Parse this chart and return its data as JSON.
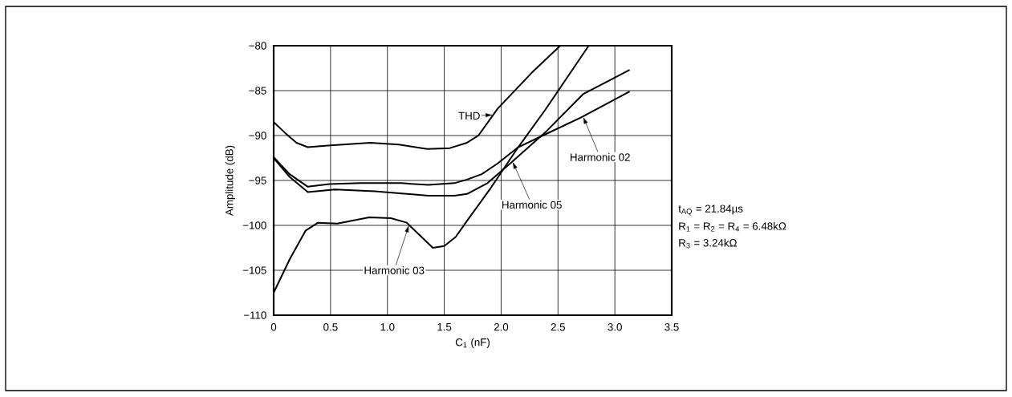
{
  "chart_data": {
    "type": "line",
    "xlabel": "C$_{1}$ (nF)",
    "ylabel": "Amplitude (dB)",
    "xlim": [
      0,
      3.5
    ],
    "ylim": [
      -110,
      -80
    ],
    "xticks": [
      0,
      0.5,
      {
        "value": 1,
        "label": "1.0"
      },
      1.5,
      {
        "value": 2,
        "label": "2.0"
      },
      2.5,
      {
        "value": 3,
        "label": "3.0"
      },
      3.5
    ],
    "yticks": [
      {
        "value": -110,
        "label": "−110"
      },
      {
        "value": -105,
        "label": "−105"
      },
      {
        "value": -100,
        "label": "−100"
      },
      {
        "value": -95,
        "label": "−95"
      },
      {
        "value": -90,
        "label": "−90"
      },
      {
        "value": -85,
        "label": "−85"
      },
      {
        "value": -80,
        "label": "−80"
      }
    ],
    "grid": true,
    "series": [
      {
        "name": "THD",
        "color": "#000000",
        "x": [
          0,
          0.1,
          0.2,
          0.3,
          0.5,
          0.85,
          1.1,
          1.35,
          1.55,
          1.7,
          1.8,
          1.97,
          2.27,
          2.52
        ],
        "values": [
          -88.5,
          -89.7,
          -90.8,
          -91.3,
          -91.1,
          -90.8,
          -91.0,
          -91.5,
          -91.4,
          -90.8,
          -90.0,
          -87.0,
          -83.0,
          -80
        ]
      },
      {
        "name": "Harmonic 02",
        "color": "#000000",
        "x": [
          0,
          0.14,
          0.3,
          0.49,
          0.77,
          1.12,
          1.36,
          1.59,
          1.7,
          1.83,
          1.97,
          2.15,
          2.4,
          2.7,
          3.13
        ],
        "values": [
          -92.4,
          -94.3,
          -95.7,
          -95.4,
          -95.3,
          -95.3,
          -95.5,
          -95.3,
          -94.9,
          -94.3,
          -93.1,
          -91.3,
          -89.8,
          -88.0,
          -85.1
        ]
      },
      {
        "name": "Harmonic 05",
        "color": "#000000",
        "x": [
          0,
          0.14,
          0.3,
          0.54,
          0.89,
          1.36,
          1.59,
          1.7,
          1.88,
          2.08,
          2.4,
          2.72,
          3.13
        ],
        "values": [
          -92.5,
          -94.6,
          -96.3,
          -96.0,
          -96.2,
          -96.7,
          -96.7,
          -96.5,
          -95.3,
          -93.1,
          -89.5,
          -85.4,
          -82.7
        ]
      },
      {
        "name": "Harmonic 03",
        "color": "#000000",
        "x": [
          0,
          0.14,
          0.28,
          0.39,
          0.56,
          0.84,
          1.03,
          1.17,
          1.26,
          1.4,
          1.5,
          1.6,
          1.7,
          1.9,
          2.15,
          2.39,
          2.77
        ],
        "values": [
          -107.5,
          -103.8,
          -100.6,
          -99.7,
          -99.8,
          -99.1,
          -99.2,
          -99.7,
          -100.8,
          -102.5,
          -102.3,
          -101.3,
          -99.5,
          -96.0,
          -91.3,
          -87.1,
          -80
        ]
      }
    ],
    "annotations": [
      "t$_{AQ}$ = 21.84µs",
      "R$_{1}$ = R$_{2}$ = R$_{4}$ = 6.48kΩ",
      "R$_{3}$ = 3.24kΩ"
    ]
  }
}
